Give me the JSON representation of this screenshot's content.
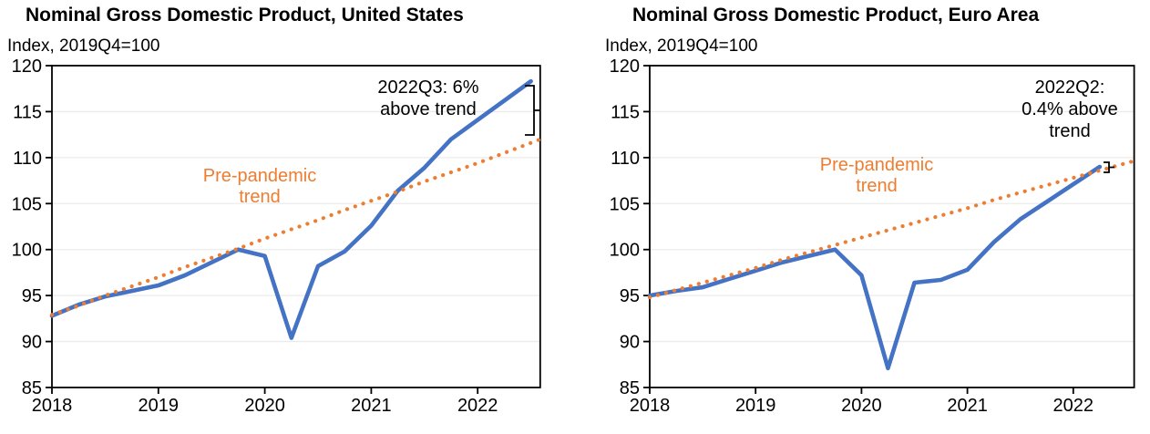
{
  "page": {
    "background_color": "#ffffff",
    "text_color": "#000000"
  },
  "chart_data": [
    {
      "type": "line",
      "title": "Nominal Gross Domestic Product, United States",
      "subtitle": "Index, 2019Q4=100",
      "x_quarters": [
        "2018Q1",
        "2018Q2",
        "2018Q3",
        "2018Q4",
        "2019Q1",
        "2019Q2",
        "2019Q3",
        "2019Q4",
        "2020Q1",
        "2020Q2",
        "2020Q3",
        "2020Q4",
        "2021Q1",
        "2021Q2",
        "2021Q3",
        "2021Q4",
        "2022Q1",
        "2022Q2",
        "2022Q3"
      ],
      "xtick_labels": [
        "2018",
        "2019",
        "2020",
        "2021",
        "2022"
      ],
      "ylim": [
        85,
        120
      ],
      "ytick_step": 5,
      "grid": "horizontal-light",
      "legend": "none",
      "series": [
        {
          "name": "Nominal GDP",
          "style": "solid",
          "color": "#4472C4",
          "values": [
            92.8,
            94.0,
            94.9,
            95.5,
            96.1,
            97.2,
            98.6,
            100.0,
            99.3,
            90.4,
            98.2,
            99.8,
            102.6,
            106.4,
            108.9,
            112.0,
            114.1,
            116.2,
            118.3
          ]
        },
        {
          "name": "Pre-pandemic trend",
          "style": "dotted",
          "color": "#ED7D31",
          "extends_to_plot_edge": true,
          "values": [
            92.9,
            93.9,
            95.0,
            96.0,
            97.0,
            98.1,
            99.1,
            100.1,
            101.2,
            102.2,
            103.2,
            104.3,
            105.3,
            106.3,
            107.4,
            108.4,
            109.4,
            110.5,
            111.6
          ]
        }
      ],
      "annotation": "2022Q3: 6%\nabove trend",
      "trend_label": "Pre-pandemic\ntrend",
      "gap_pct_above_trend": 6,
      "gap_quarter": "2022Q3"
    },
    {
      "type": "line",
      "title": "Nominal Gross Domestic Product, Euro Area",
      "subtitle": "Index, 2019Q4=100",
      "x_quarters": [
        "2018Q1",
        "2018Q2",
        "2018Q3",
        "2018Q4",
        "2019Q1",
        "2019Q2",
        "2019Q3",
        "2019Q4",
        "2020Q1",
        "2020Q2",
        "2020Q3",
        "2020Q4",
        "2021Q1",
        "2021Q2",
        "2021Q3",
        "2021Q4",
        "2022Q1",
        "2022Q2"
      ],
      "xtick_labels": [
        "2018",
        "2019",
        "2020",
        "2021",
        "2022"
      ],
      "ylim": [
        85,
        120
      ],
      "ytick_step": 5,
      "grid": "horizontal-light",
      "legend": "none",
      "series": [
        {
          "name": "Nominal GDP",
          "style": "solid",
          "color": "#4472C4",
          "values": [
            95.0,
            95.5,
            95.9,
            96.8,
            97.7,
            98.6,
            99.3,
            100.0,
            97.2,
            87.1,
            96.4,
            96.7,
            97.8,
            100.8,
            103.3,
            105.2,
            107.1,
            109.0
          ]
        },
        {
          "name": "Pre-pandemic trend",
          "style": "dotted",
          "color": "#ED7D31",
          "extends_to_plot_edge": true,
          "values": [
            94.8,
            95.6,
            96.4,
            97.2,
            98.0,
            98.9,
            99.7,
            100.5,
            101.3,
            102.1,
            102.9,
            103.7,
            104.5,
            105.4,
            106.2,
            107.0,
            107.8,
            108.6
          ]
        }
      ],
      "annotation": "2022Q2:\n0.4% above\ntrend",
      "trend_label": "Pre-pandemic\ntrend",
      "gap_pct_above_trend": 0.4,
      "gap_quarter": "2022Q2"
    }
  ]
}
